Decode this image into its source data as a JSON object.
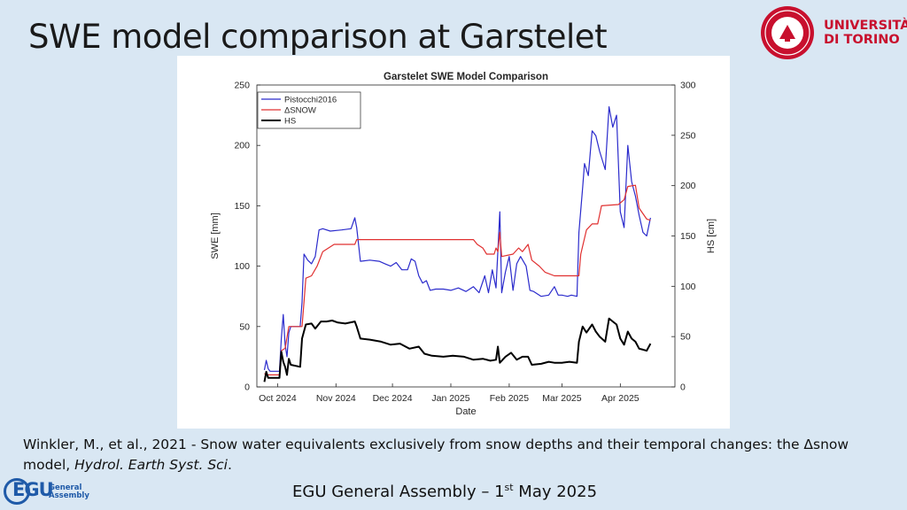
{
  "slide": {
    "title": "SWE model comparison at Garstelet",
    "citation_main": "Winkler, M., et al., 2021 - Snow water equivalents exclusively from snow depths and their temporal changes: the Δsnow model, ",
    "citation_journal": "Hydrol. Earth Syst. Sci",
    "citation_end": ".",
    "footer_prefix": "EGU General Assembly  –   1",
    "footer_sup": "st",
    "footer_suffix": " May 2025"
  },
  "logos": {
    "unito_line1": "UNIVERSITÀ",
    "unito_line2": "DI TORINO",
    "unito_color": "#c8102e",
    "egu_mark": "EGU",
    "egu_line1": "General",
    "egu_line2": "Assembly",
    "egu_color": "#1f5aa8"
  },
  "chart_data": {
    "type": "line",
    "title": "Garstelet SWE Model Comparison",
    "xlabel": "Date",
    "ylabel": "SWE [mm]",
    "y2label": "HS [cm]",
    "ylim": [
      0,
      250
    ],
    "y2lim": [
      0,
      300
    ],
    "xlim": [
      "2024-09-20",
      "2025-04-30"
    ],
    "yticks": [
      0,
      50,
      100,
      150,
      200,
      250
    ],
    "y2ticks": [
      0,
      50,
      100,
      150,
      200,
      250,
      300
    ],
    "xticks": [
      {
        "date": "2024-10-01",
        "label": "Oct 2024"
      },
      {
        "date": "2024-11-01",
        "label": "Nov 2024"
      },
      {
        "date": "2024-12-01",
        "label": "Dec 2024"
      },
      {
        "date": "2025-01-01",
        "label": "Jan 2025"
      },
      {
        "date": "2025-02-01",
        "label": "Feb 2025"
      },
      {
        "date": "2025-03-01",
        "label": "Mar 2025"
      },
      {
        "date": "2025-04-01",
        "label": "Apr 2025"
      }
    ],
    "grid": false,
    "legend_position": "top-left",
    "series": [
      {
        "name": "Pistocchi2016",
        "color": "#2b2bcc",
        "axis": "left",
        "points": [
          [
            "2024-09-24",
            14
          ],
          [
            "2024-09-25",
            22
          ],
          [
            "2024-09-26",
            15
          ],
          [
            "2024-09-27",
            13
          ],
          [
            "2024-10-02",
            13
          ],
          [
            "2024-10-03",
            40
          ],
          [
            "2024-10-04",
            60
          ],
          [
            "2024-10-05",
            35
          ],
          [
            "2024-10-06",
            25
          ],
          [
            "2024-10-07",
            45
          ],
          [
            "2024-10-08",
            50
          ],
          [
            "2024-10-13",
            50
          ],
          [
            "2024-10-14",
            70
          ],
          [
            "2024-10-15",
            110
          ],
          [
            "2024-10-17",
            105
          ],
          [
            "2024-10-19",
            102
          ],
          [
            "2024-10-21",
            108
          ],
          [
            "2024-10-23",
            130
          ],
          [
            "2024-10-25",
            131
          ],
          [
            "2024-10-29",
            129
          ],
          [
            "2024-11-04",
            130
          ],
          [
            "2024-11-09",
            131
          ],
          [
            "2024-11-11",
            140
          ],
          [
            "2024-11-12",
            132
          ],
          [
            "2024-11-14",
            104
          ],
          [
            "2024-11-19",
            105
          ],
          [
            "2024-11-24",
            104
          ],
          [
            "2024-11-27",
            102
          ],
          [
            "2024-11-30",
            100
          ],
          [
            "2024-12-03",
            103
          ],
          [
            "2024-12-06",
            97
          ],
          [
            "2024-12-09",
            97
          ],
          [
            "2024-12-11",
            106
          ],
          [
            "2024-12-13",
            104
          ],
          [
            "2024-12-15",
            92
          ],
          [
            "2024-12-17",
            86
          ],
          [
            "2024-12-19",
            88
          ],
          [
            "2024-12-21",
            80
          ],
          [
            "2024-12-24",
            81
          ],
          [
            "2024-12-28",
            81
          ],
          [
            "2025-01-01",
            80
          ],
          [
            "2025-01-05",
            82
          ],
          [
            "2025-01-09",
            79
          ],
          [
            "2025-01-13",
            83
          ],
          [
            "2025-01-16",
            78
          ],
          [
            "2025-01-19",
            92
          ],
          [
            "2025-01-21",
            78
          ],
          [
            "2025-01-23",
            97
          ],
          [
            "2025-01-25",
            82
          ],
          [
            "2025-01-27",
            145
          ],
          [
            "2025-01-28",
            78
          ],
          [
            "2025-01-30",
            95
          ],
          [
            "2025-02-01",
            108
          ],
          [
            "2025-02-03",
            80
          ],
          [
            "2025-02-05",
            102
          ],
          [
            "2025-02-07",
            108
          ],
          [
            "2025-02-10",
            100
          ],
          [
            "2025-02-12",
            80
          ],
          [
            "2025-02-14",
            79
          ],
          [
            "2025-02-18",
            75
          ],
          [
            "2025-02-22",
            76
          ],
          [
            "2025-02-25",
            83
          ],
          [
            "2025-02-27",
            76
          ],
          [
            "2025-03-01",
            76
          ],
          [
            "2025-03-04",
            75
          ],
          [
            "2025-03-06",
            76
          ],
          [
            "2025-03-09",
            75
          ],
          [
            "2025-03-10",
            128
          ],
          [
            "2025-03-12",
            165
          ],
          [
            "2025-03-13",
            185
          ],
          [
            "2025-03-15",
            175
          ],
          [
            "2025-03-17",
            212
          ],
          [
            "2025-03-19",
            208
          ],
          [
            "2025-03-21",
            195
          ],
          [
            "2025-03-24",
            180
          ],
          [
            "2025-03-26",
            232
          ],
          [
            "2025-03-28",
            215
          ],
          [
            "2025-03-30",
            225
          ],
          [
            "2025-04-01",
            145
          ],
          [
            "2025-04-03",
            132
          ],
          [
            "2025-04-05",
            200
          ],
          [
            "2025-04-07",
            170
          ],
          [
            "2025-04-09",
            158
          ],
          [
            "2025-04-11",
            142
          ],
          [
            "2025-04-13",
            128
          ],
          [
            "2025-04-15",
            125
          ],
          [
            "2025-04-17",
            140
          ]
        ]
      },
      {
        "name": "ΔSNOW",
        "color": "#e03030",
        "axis": "left",
        "points": [
          [
            "2024-09-24",
            11
          ],
          [
            "2024-09-26",
            10
          ],
          [
            "2024-10-02",
            10
          ],
          [
            "2024-10-03",
            30
          ],
          [
            "2024-10-05",
            32
          ],
          [
            "2024-10-07",
            50
          ],
          [
            "2024-10-14",
            50
          ],
          [
            "2024-10-15",
            70
          ],
          [
            "2024-10-16",
            90
          ],
          [
            "2024-10-19",
            92
          ],
          [
            "2024-10-22",
            100
          ],
          [
            "2024-10-25",
            112
          ],
          [
            "2024-10-28",
            115
          ],
          [
            "2024-10-31",
            118
          ],
          [
            "2024-11-11",
            118
          ],
          [
            "2024-11-12",
            122
          ],
          [
            "2025-01-13",
            122
          ],
          [
            "2025-01-15",
            118
          ],
          [
            "2025-01-18",
            115
          ],
          [
            "2025-01-20",
            110
          ],
          [
            "2025-01-24",
            110
          ],
          [
            "2025-01-25",
            115
          ],
          [
            "2025-01-26",
            112
          ],
          [
            "2025-01-27",
            128
          ],
          [
            "2025-01-28",
            108
          ],
          [
            "2025-02-03",
            110
          ],
          [
            "2025-02-06",
            115
          ],
          [
            "2025-02-08",
            112
          ],
          [
            "2025-02-11",
            118
          ],
          [
            "2025-02-13",
            105
          ],
          [
            "2025-02-17",
            100
          ],
          [
            "2025-02-20",
            95
          ],
          [
            "2025-02-25",
            92
          ],
          [
            "2025-03-10",
            92
          ],
          [
            "2025-03-11",
            110
          ],
          [
            "2025-03-14",
            130
          ],
          [
            "2025-03-17",
            135
          ],
          [
            "2025-03-20",
            135
          ],
          [
            "2025-03-22",
            150
          ],
          [
            "2025-03-31",
            151
          ],
          [
            "2025-04-03",
            155
          ],
          [
            "2025-04-05",
            166
          ],
          [
            "2025-04-09",
            167
          ],
          [
            "2025-04-11",
            148
          ],
          [
            "2025-04-15",
            139
          ],
          [
            "2025-04-17",
            138
          ]
        ]
      },
      {
        "name": "HS",
        "color": "#000000",
        "axis": "right",
        "points": [
          [
            "2024-09-24",
            5
          ],
          [
            "2024-09-25",
            15
          ],
          [
            "2024-09-26",
            9
          ],
          [
            "2024-10-02",
            9
          ],
          [
            "2024-10-03",
            35
          ],
          [
            "2024-10-04",
            25
          ],
          [
            "2024-10-05",
            20
          ],
          [
            "2024-10-06",
            12
          ],
          [
            "2024-10-07",
            28
          ],
          [
            "2024-10-08",
            22
          ],
          [
            "2024-10-13",
            20
          ],
          [
            "2024-10-14",
            48
          ],
          [
            "2024-10-16",
            62
          ],
          [
            "2024-10-19",
            63
          ],
          [
            "2024-10-21",
            58
          ],
          [
            "2024-10-24",
            65
          ],
          [
            "2024-10-27",
            65
          ],
          [
            "2024-10-30",
            66
          ],
          [
            "2024-11-02",
            64
          ],
          [
            "2024-11-06",
            63
          ],
          [
            "2024-11-11",
            65
          ],
          [
            "2024-11-12",
            60
          ],
          [
            "2024-11-14",
            48
          ],
          [
            "2024-11-19",
            47
          ],
          [
            "2024-11-25",
            45
          ],
          [
            "2024-11-30",
            42
          ],
          [
            "2024-12-05",
            43
          ],
          [
            "2024-12-10",
            38
          ],
          [
            "2024-12-15",
            40
          ],
          [
            "2024-12-18",
            33
          ],
          [
            "2024-12-22",
            31
          ],
          [
            "2024-12-28",
            30
          ],
          [
            "2025-01-02",
            31
          ],
          [
            "2025-01-08",
            30
          ],
          [
            "2025-01-13",
            27
          ],
          [
            "2025-01-18",
            28
          ],
          [
            "2025-01-22",
            26
          ],
          [
            "2025-01-25",
            27
          ],
          [
            "2025-01-26",
            40
          ],
          [
            "2025-01-27",
            24
          ],
          [
            "2025-01-30",
            30
          ],
          [
            "2025-02-02",
            34
          ],
          [
            "2025-02-05",
            27
          ],
          [
            "2025-02-08",
            30
          ],
          [
            "2025-02-11",
            30
          ],
          [
            "2025-02-13",
            22
          ],
          [
            "2025-02-18",
            23
          ],
          [
            "2025-02-22",
            25
          ],
          [
            "2025-02-25",
            24
          ],
          [
            "2025-03-01",
            24
          ],
          [
            "2025-03-05",
            25
          ],
          [
            "2025-03-09",
            24
          ],
          [
            "2025-03-10",
            45
          ],
          [
            "2025-03-12",
            60
          ],
          [
            "2025-03-14",
            54
          ],
          [
            "2025-03-17",
            62
          ],
          [
            "2025-03-19",
            55
          ],
          [
            "2025-03-21",
            50
          ],
          [
            "2025-03-24",
            45
          ],
          [
            "2025-03-26",
            68
          ],
          [
            "2025-03-28",
            65
          ],
          [
            "2025-03-30",
            62
          ],
          [
            "2025-04-01",
            48
          ],
          [
            "2025-04-03",
            42
          ],
          [
            "2025-04-05",
            55
          ],
          [
            "2025-04-07",
            48
          ],
          [
            "2025-04-09",
            45
          ],
          [
            "2025-04-11",
            38
          ],
          [
            "2025-04-13",
            37
          ],
          [
            "2025-04-15",
            36
          ],
          [
            "2025-04-17",
            43
          ]
        ]
      }
    ]
  }
}
